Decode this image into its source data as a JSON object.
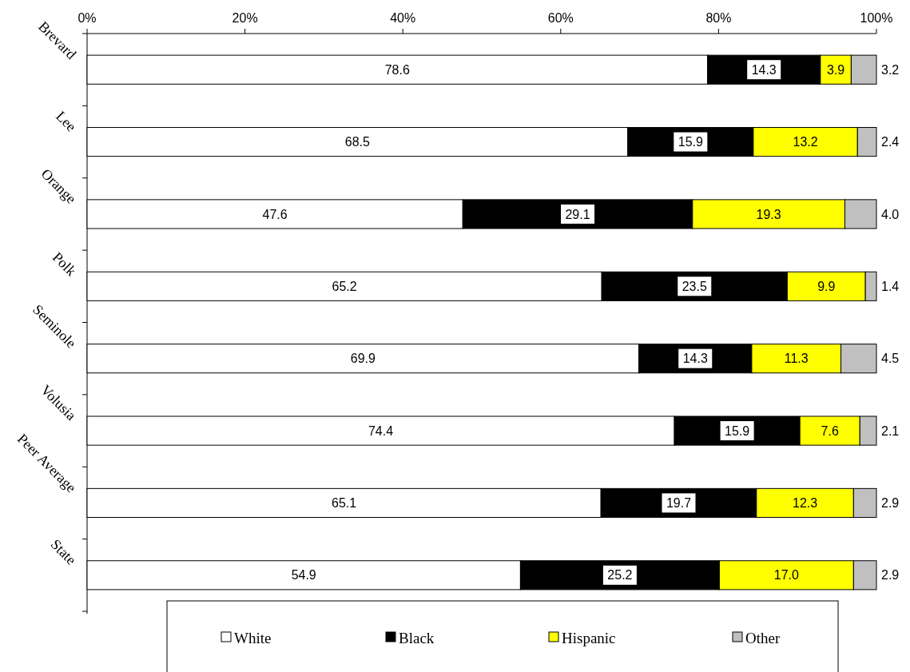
{
  "chart_data": {
    "type": "bar",
    "orientation": "horizontal",
    "stacked": true,
    "categories": [
      "Brevard",
      "Lee",
      "Orange",
      "Polk",
      "Seminole",
      "Volusia",
      "Peer Average",
      "State"
    ],
    "series": [
      {
        "name": "White",
        "color": "#ffffff",
        "values": [
          78.6,
          68.5,
          47.6,
          65.2,
          69.9,
          74.4,
          65.1,
          54.9
        ],
        "value_labels": [
          "78.6",
          "68.5",
          "47.6",
          "65.2",
          "69.9",
          "74.4",
          "65.1",
          "54.9"
        ]
      },
      {
        "name": "Black",
        "color": "#000000",
        "values": [
          14.3,
          15.9,
          29.1,
          23.5,
          14.3,
          15.9,
          19.7,
          25.2
        ],
        "value_labels": [
          "14.3",
          "15.9",
          "29.1",
          "23.5",
          "14.3",
          "15.9",
          "19.7",
          "25.2"
        ]
      },
      {
        "name": "Hispanic",
        "color": "#ffff00",
        "values": [
          3.9,
          13.2,
          19.3,
          9.9,
          11.3,
          7.6,
          12.3,
          17.0
        ],
        "value_labels": [
          "3.9",
          "13.2",
          "19.3",
          "9.9",
          "11.3",
          "7.6",
          "12.3",
          "17.0"
        ]
      },
      {
        "name": "Other",
        "color": "#c0c0c0",
        "values": [
          3.2,
          2.4,
          4.0,
          1.4,
          4.5,
          2.1,
          2.9,
          2.9
        ],
        "value_labels": [
          "3.2",
          "2.4",
          "4.0",
          "1.4",
          "4.5",
          "2.1",
          "2.9",
          "2.9"
        ]
      }
    ],
    "xlim": [
      0,
      100
    ],
    "xticks": [
      {
        "value": 0,
        "label": "0%"
      },
      {
        "value": 20,
        "label": "20%"
      },
      {
        "value": 40,
        "label": "40%"
      },
      {
        "value": 60,
        "label": "60%"
      },
      {
        "value": 80,
        "label": "80%"
      },
      {
        "value": 100,
        "label": "100%"
      }
    ],
    "legend": "bottom",
    "grid": false
  }
}
